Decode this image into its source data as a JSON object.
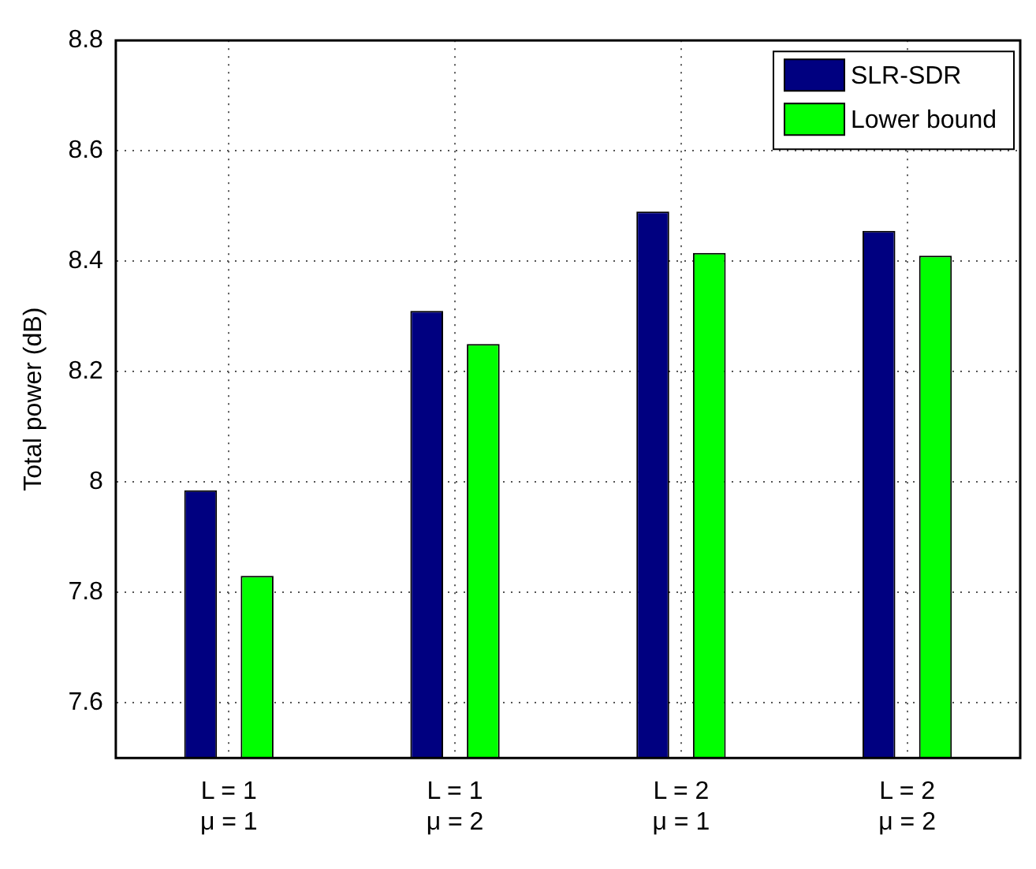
{
  "chart_data": {
    "type": "bar",
    "ylabel": "Total power (dB)",
    "categories": [
      "L = 1\nμ = 1",
      "L = 1\nμ = 2",
      "L = 2\nμ = 1",
      "L = 2\nμ = 2"
    ],
    "series": [
      {
        "name": "SLR-SDR",
        "color": "#000080",
        "values": [
          7.985,
          8.31,
          8.49,
          8.455
        ]
      },
      {
        "name": "Lower bound",
        "color": "#00ff00",
        "values": [
          7.83,
          8.25,
          8.415,
          8.41
        ]
      }
    ],
    "ylim": [
      7.5,
      8.8
    ],
    "yticks": [
      7.6,
      7.8,
      8,
      8.2,
      8.4,
      8.6,
      8.8
    ],
    "grid": true,
    "legend": "top right"
  }
}
